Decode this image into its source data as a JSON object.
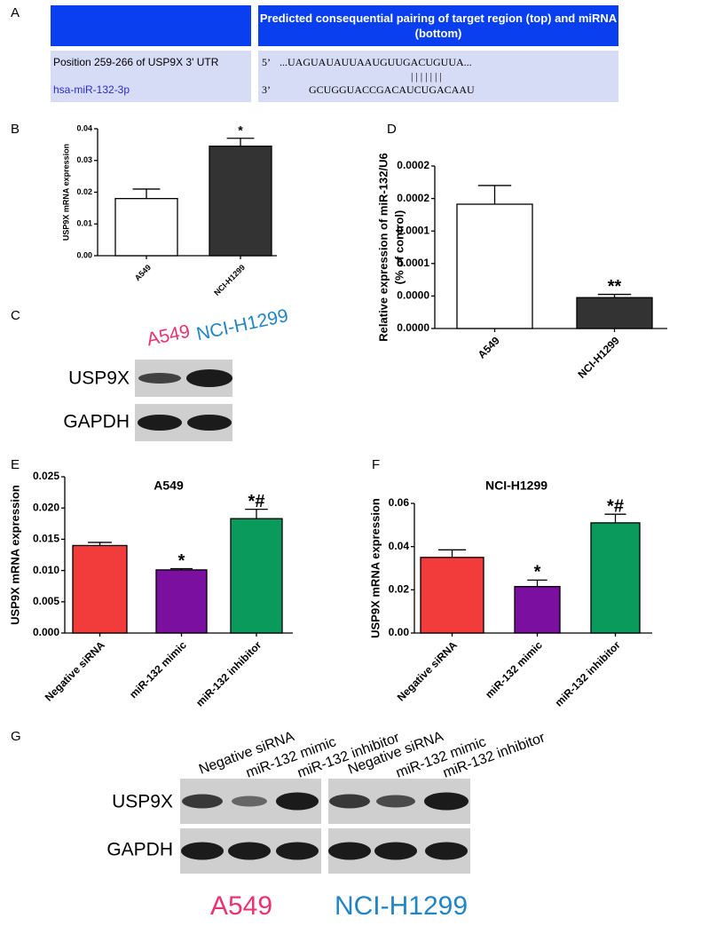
{
  "panel_labels": [
    "A",
    "B",
    "C",
    "D",
    "E",
    "F",
    "G"
  ],
  "sequence_table": {
    "header": "Predicted consequential pairing of target region (top) and miRNA (bottom)",
    "target_label": "Position 259-266 of USP9X 3' UTR",
    "target_end": "5’",
    "target_sequence": "...UAGUAUAUUAAUGUUGACUGUUA...",
    "pairing": "|||||||",
    "mirna_label": "hsa-miR-132-3p",
    "mirna_end": "3’",
    "mirna_sequence": "GCUGGUACCGACAUCUGACAAU"
  },
  "blot_c": {
    "cell_lines": [
      "A549",
      "NCI-H1299"
    ],
    "proteins": [
      "USP9X",
      "GAPDH"
    ]
  },
  "blot_g": {
    "lanes": [
      "Negative siRNA",
      "miR-132 mimic",
      "miR-132 inhibitor",
      "Negative siRNA",
      "miR-132 mimic",
      "miR-132 inhibitor"
    ],
    "proteins": [
      "USP9X",
      "GAPDH"
    ],
    "cell_lines": [
      "A549",
      "NCI-H1299"
    ]
  },
  "chart_data": [
    {
      "type": "bar",
      "y_label": "USP9X mRNA expression",
      "categories": [
        "A549",
        "NCI-H1299"
      ],
      "values": [
        0.018,
        0.0345
      ],
      "errors": [
        0.003,
        0.0025
      ],
      "annotations": [
        null,
        "*"
      ],
      "colors": [
        "#ffffff",
        "#333333"
      ],
      "ylim": [
        0,
        0.04
      ],
      "yticks": [
        {
          "value": 0,
          "label": "0.00"
        },
        {
          "value": 0.01,
          "label": "0.01"
        },
        {
          "value": 0.02,
          "label": "0.02"
        },
        {
          "value": 0.03,
          "label": "0.03"
        },
        {
          "value": 0.04,
          "label": "0.04"
        }
      ],
      "grid": false
    },
    {
      "type": "bar",
      "y_label": [
        "Relative expression of miR-132/U6",
        "(% of control)"
      ],
      "categories": [
        "A549",
        "NCI-H1299"
      ],
      "values": [
        0.000153,
        3.8e-05
      ],
      "errors": [
        2.3e-05,
        4e-06
      ],
      "annotations": [
        null,
        "**"
      ],
      "colors": [
        "#ffffff",
        "#333333"
      ],
      "ylim": [
        0,
        0.0002
      ],
      "yticks": [
        {
          "value": 0,
          "label": "0.0000"
        },
        {
          "value": 4e-05,
          "label": "0.0000"
        },
        {
          "value": 8e-05,
          "label": "0.0001"
        },
        {
          "value": 0.00012,
          "label": "0.0001"
        },
        {
          "value": 0.00016,
          "label": "0.0002"
        },
        {
          "value": 0.0002,
          "label": "0.0002"
        }
      ],
      "grid": false
    },
    {
      "type": "bar",
      "title": "A549",
      "y_label": "USP9X mRNA expression",
      "categories": [
        "Negative siRNA",
        "miR-132 mimic",
        "miR-132 inhibitor"
      ],
      "values": [
        0.014,
        0.0101,
        0.0183
      ],
      "errors": [
        0.0005,
        0.0002,
        0.0015
      ],
      "annotations": [
        null,
        "*",
        "*#"
      ],
      "colors": [
        "#f23b3b",
        "#7a0fa0",
        "#0a9a5c"
      ],
      "ylim": [
        0,
        0.025
      ],
      "yticks": [
        {
          "value": 0,
          "label": "0.000"
        },
        {
          "value": 0.005,
          "label": "0.005"
        },
        {
          "value": 0.01,
          "label": "0.010"
        },
        {
          "value": 0.015,
          "label": "0.015"
        },
        {
          "value": 0.02,
          "label": "0.020"
        },
        {
          "value": 0.025,
          "label": "0.025"
        }
      ],
      "grid": false
    },
    {
      "type": "bar",
      "title": "NCI-H1299",
      "y_label": "USP9X mRNA expression",
      "categories": [
        "Negative siRNA",
        "miR-132 mimic",
        "miR-132 inhibitor"
      ],
      "values": [
        0.035,
        0.0215,
        0.051
      ],
      "errors": [
        0.0035,
        0.003,
        0.004
      ],
      "annotations": [
        null,
        "*",
        "*#"
      ],
      "colors": [
        "#f23b3b",
        "#7a0fa0",
        "#0a9a5c"
      ],
      "ylim": [
        0,
        0.06
      ],
      "yticks": [
        {
          "value": 0,
          "label": "0.00"
        },
        {
          "value": 0.02,
          "label": "0.02"
        },
        {
          "value": 0.04,
          "label": "0.04"
        },
        {
          "value": 0.06,
          "label": "0.06"
        }
      ],
      "grid": false
    }
  ]
}
